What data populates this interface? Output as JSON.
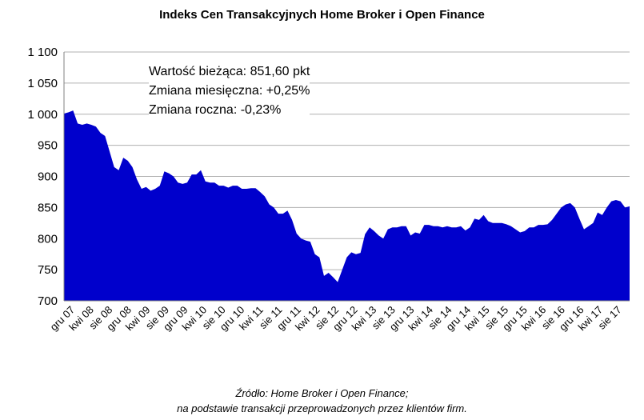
{
  "chart_data": {
    "type": "area",
    "title": "Indeks Cen Transakcyjnych Home Broker i Open Finance",
    "xlabel": "",
    "ylabel": "",
    "ylim": [
      700,
      1100
    ],
    "yticks": [
      "1 100",
      "1 050",
      "1 000",
      "950",
      "900",
      "850",
      "800",
      "750",
      "700"
    ],
    "ytick_values": [
      1100,
      1050,
      1000,
      950,
      900,
      850,
      800,
      750,
      700
    ],
    "xticks": [
      "gru 07",
      "kwi 08",
      "sie 08",
      "gru 08",
      "kwi 09",
      "sie 09",
      "gru 09",
      "kwi 10",
      "sie 10",
      "gru 10",
      "kwi 11",
      "sie 11",
      "gru 11",
      "kwi 12",
      "sie 12",
      "gru 12",
      "kwi 13",
      "sie 13",
      "gru 13",
      "kwi 14",
      "sie 14",
      "gru 14",
      "kwi 15",
      "sie 15",
      "gru 15",
      "kwi 16",
      "sie 16",
      "gru 16",
      "kwi 17",
      "sie 17"
    ],
    "grid": true,
    "fill_color": "#0000cc",
    "series": [
      {
        "name": "",
        "values": [
          1001,
          1003,
          1006,
          985,
          983,
          985,
          983,
          980,
          970,
          965,
          940,
          915,
          910,
          930,
          925,
          915,
          895,
          880,
          883,
          877,
          880,
          885,
          908,
          905,
          900,
          890,
          888,
          890,
          903,
          903,
          910,
          892,
          890,
          890,
          885,
          885,
          882,
          885,
          885,
          880,
          880,
          881,
          881,
          875,
          868,
          855,
          850,
          840,
          840,
          845,
          830,
          808,
          800,
          797,
          795,
          775,
          770,
          740,
          745,
          738,
          730,
          750,
          770,
          778,
          775,
          777,
          807,
          818,
          812,
          805,
          800,
          815,
          818,
          818,
          820,
          820,
          805,
          810,
          808,
          822,
          822,
          820,
          820,
          818,
          820,
          818,
          818,
          820,
          813,
          818,
          832,
          830,
          838,
          828,
          825,
          825,
          825,
          823,
          820,
          815,
          810,
          812,
          818,
          818,
          822,
          822,
          823,
          830,
          840,
          850,
          855,
          857,
          850,
          832,
          815,
          820,
          825,
          842,
          838,
          850,
          860,
          862,
          860,
          850,
          852
        ]
      }
    ]
  },
  "info": {
    "current": "Wartość bieżąca: 851,60 pkt",
    "monthly": "Zmiana miesięczna: +0,25%",
    "yearly": "Zmiana roczna: -0,23%"
  },
  "source": {
    "line1": "Źródło: Home Broker i Open Finance;",
    "line2": "na podstawie transakcji przeprowadzonych przez klientów firm."
  }
}
